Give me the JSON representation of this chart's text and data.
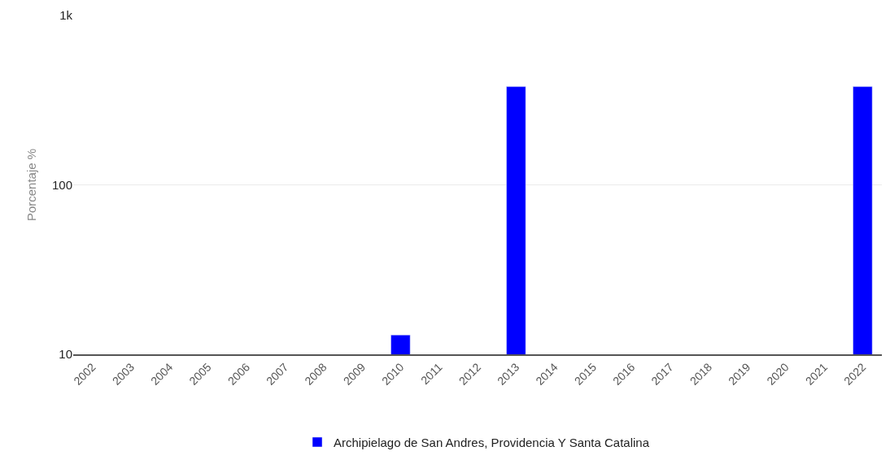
{
  "chart_data": {
    "type": "bar",
    "ylabel": "Porcentaje %",
    "categories": [
      "2002",
      "2003",
      "2004",
      "2005",
      "2006",
      "2007",
      "2008",
      "2009",
      "2010",
      "2011",
      "2012",
      "2013",
      "2014",
      "2015",
      "2016",
      "2017",
      "2018",
      "2019",
      "2020",
      "2021",
      "2022"
    ],
    "series": [
      {
        "name": "Archipielago de San Andres, Providencia Y Santa Catalina",
        "color": "#0000ff",
        "values": [
          null,
          null,
          null,
          null,
          null,
          null,
          null,
          null,
          13,
          null,
          null,
          380,
          null,
          null,
          null,
          null,
          null,
          null,
          null,
          null,
          380
        ]
      }
    ],
    "log": "y",
    "ylim": [
      10,
      1000
    ],
    "yticks": [
      10,
      100,
      {
        "value": 1000,
        "label": "1k"
      }
    ],
    "grid": "y",
    "legend": "bottom"
  }
}
